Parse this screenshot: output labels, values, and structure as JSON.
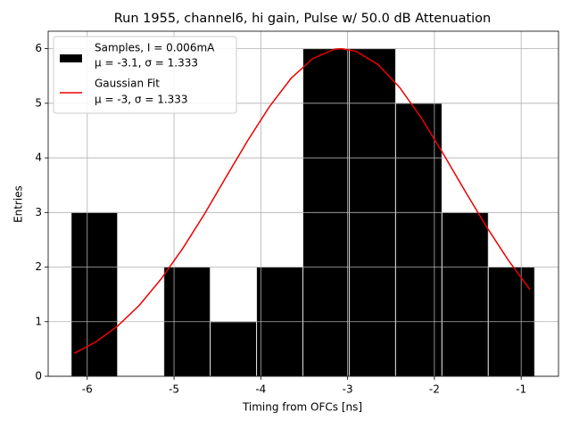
{
  "chart_data": {
    "type": "histogram",
    "title": "Run 1955, channel6, hi gain, Pulse w/ 50.0 dB Attenuation",
    "xlabel": "Timing from OFCs [ns]",
    "ylabel": "Entries",
    "bins": [
      -6.185,
      -5.651,
      -5.117,
      -4.583,
      -4.049,
      -3.515,
      -2.981,
      -2.447,
      -1.913,
      -1.379,
      -0.845
    ],
    "counts": [
      3,
      0,
      2,
      1,
      2,
      6,
      6,
      5,
      3,
      2
    ],
    "color": "#000000",
    "edgecolor": "#dddddd",
    "name": "Samples, I = 0.006mA",
    "stats": "μ = -3.1, σ = 1.333",
    "fit": {
      "name": "Gaussian Fit",
      "stats": "μ = -3, σ = 1.333",
      "color": "#ee0000",
      "x": [
        -6.15,
        -5.9,
        -5.65,
        -5.4,
        -5.15,
        -4.9,
        -4.65,
        -4.4,
        -4.15,
        -3.9,
        -3.65,
        -3.4,
        -3.15,
        -3.07,
        -2.9,
        -2.65,
        -2.4,
        -2.15,
        -1.9,
        -1.65,
        -1.4,
        -1.15,
        -0.9
      ],
      "values": [
        0.42,
        0.63,
        0.92,
        1.3,
        1.78,
        2.34,
        2.97,
        3.65,
        4.32,
        4.94,
        5.46,
        5.82,
        5.99,
        6.0,
        5.95,
        5.71,
        5.29,
        4.73,
        4.08,
        3.4,
        2.74,
        2.13,
        1.59
      ]
    },
    "xlim": [
      -6.45,
      -0.57
    ],
    "ylim": [
      0,
      6.32
    ],
    "xticks": [
      -6,
      -5,
      -4,
      -3,
      -2,
      -1
    ],
    "yticks": [
      0,
      1,
      2,
      3,
      4,
      5,
      6
    ],
    "grid": true,
    "legend": "upper left"
  }
}
